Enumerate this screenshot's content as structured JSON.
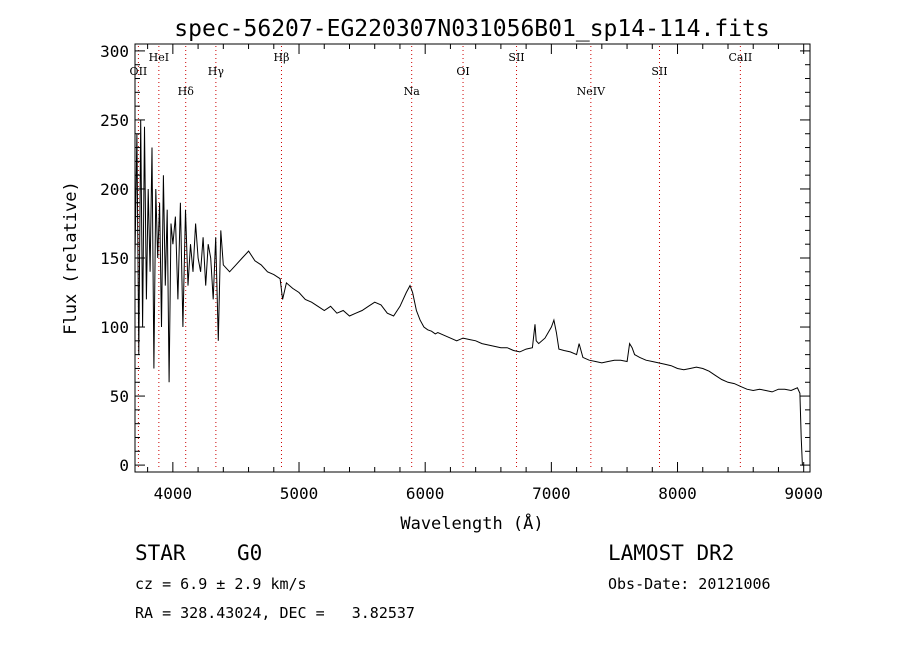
{
  "chart_data": {
    "type": "line",
    "title": "spec-56207-EG220307N031056B01_sp14-114.fits",
    "xlabel": "Wavelength (Å)",
    "ylabel": "Flux (relative)",
    "xlim": [
      3700,
      9050
    ],
    "ylim": [
      -5,
      305
    ],
    "xticks": [
      4000,
      5000,
      6000,
      7000,
      8000,
      9000
    ],
    "yticks": [
      0,
      50,
      100,
      150,
      200,
      250,
      300
    ],
    "grid": false,
    "line_color": "#000000",
    "marker_color": "#cc0000",
    "lines": [
      {
        "label": "OII",
        "x": 3727
      },
      {
        "label": "HeI",
        "x": 3889
      },
      {
        "label": "Hδ",
        "x": 4102
      },
      {
        "label": "Hγ",
        "x": 4341
      },
      {
        "label": "Hβ",
        "x": 4861
      },
      {
        "label": "Na",
        "x": 5893
      },
      {
        "label": "OI",
        "x": 6300
      },
      {
        "label": "SII",
        "x": 6724
      },
      {
        "label": "NeIV",
        "x": 7313
      },
      {
        "label": "SII",
        "x": 7857
      },
      {
        "label": "CaII",
        "x": 8498
      }
    ],
    "series": [
      {
        "x": [
          3700,
          3715,
          3730,
          3745,
          3760,
          3775,
          3790,
          3805,
          3820,
          3835,
          3850,
          3865,
          3880,
          3895,
          3910,
          3925,
          3940,
          3955,
          3970,
          3985,
          4000,
          4020,
          4040,
          4060,
          4080,
          4100,
          4120,
          4140,
          4160,
          4180,
          4200,
          4220,
          4240,
          4260,
          4280,
          4300,
          4320,
          4340,
          4360,
          4380,
          4400,
          4450,
          4500,
          4550,
          4600,
          4650,
          4700,
          4750,
          4800,
          4850,
          4870,
          4900,
          4950,
          5000,
          5050,
          5100,
          5150,
          5200,
          5250,
          5300,
          5350,
          5400,
          5450,
          5500,
          5550,
          5600,
          5650,
          5700,
          5750,
          5800,
          5850,
          5880,
          5900,
          5930,
          5960,
          5990,
          6020,
          6050,
          6080,
          6100,
          6150,
          6200,
          6250,
          6300,
          6350,
          6400,
          6450,
          6500,
          6550,
          6600,
          6650,
          6700,
          6750,
          6800,
          6850,
          6870,
          6880,
          6900,
          6950,
          7000,
          7020,
          7040,
          7060,
          7100,
          7150,
          7200,
          7220,
          7250,
          7300,
          7350,
          7400,
          7450,
          7500,
          7550,
          7600,
          7620,
          7640,
          7660,
          7700,
          7750,
          7800,
          7850,
          7900,
          7950,
          8000,
          8050,
          8100,
          8150,
          8200,
          8250,
          8300,
          8350,
          8400,
          8450,
          8500,
          8550,
          8600,
          8650,
          8700,
          8750,
          8800,
          8850,
          8900,
          8950,
          8970,
          8980,
          8990,
          9000
        ],
        "y": [
          150,
          240,
          80,
          250,
          100,
          245,
          120,
          200,
          140,
          230,
          70,
          200,
          150,
          190,
          100,
          210,
          130,
          185,
          60,
          175,
          160,
          180,
          120,
          190,
          100,
          185,
          130,
          160,
          140,
          175,
          150,
          140,
          165,
          130,
          160,
          150,
          120,
          165,
          90,
          170,
          145,
          140,
          145,
          150,
          155,
          148,
          145,
          140,
          138,
          135,
          120,
          132,
          128,
          125,
          120,
          118,
          115,
          112,
          115,
          110,
          112,
          108,
          110,
          112,
          115,
          118,
          116,
          110,
          108,
          115,
          125,
          130,
          125,
          112,
          105,
          100,
          98,
          97,
          95,
          96,
          94,
          92,
          90,
          92,
          91,
          90,
          88,
          87,
          86,
          85,
          85,
          83,
          82,
          84,
          85,
          102,
          90,
          88,
          92,
          100,
          105,
          96,
          84,
          83,
          82,
          80,
          88,
          78,
          76,
          75,
          74,
          75,
          76,
          76,
          75,
          88,
          85,
          80,
          78,
          76,
          75,
          74,
          73,
          72,
          70,
          69,
          70,
          71,
          70,
          68,
          65,
          62,
          60,
          59,
          57,
          55,
          54,
          55,
          54,
          53,
          55,
          55,
          54,
          56,
          52,
          20,
          0,
          0
        ]
      }
    ]
  },
  "info": {
    "class_label": "STAR",
    "subclass_label": "G0",
    "cz_text": "cz = 6.9 ± 2.9 km/s",
    "radec_text": "RA = 328.43024, DEC =   3.82537",
    "survey_label": "LAMOST DR2",
    "obsdate_text": "Obs-Date: 20121006"
  }
}
